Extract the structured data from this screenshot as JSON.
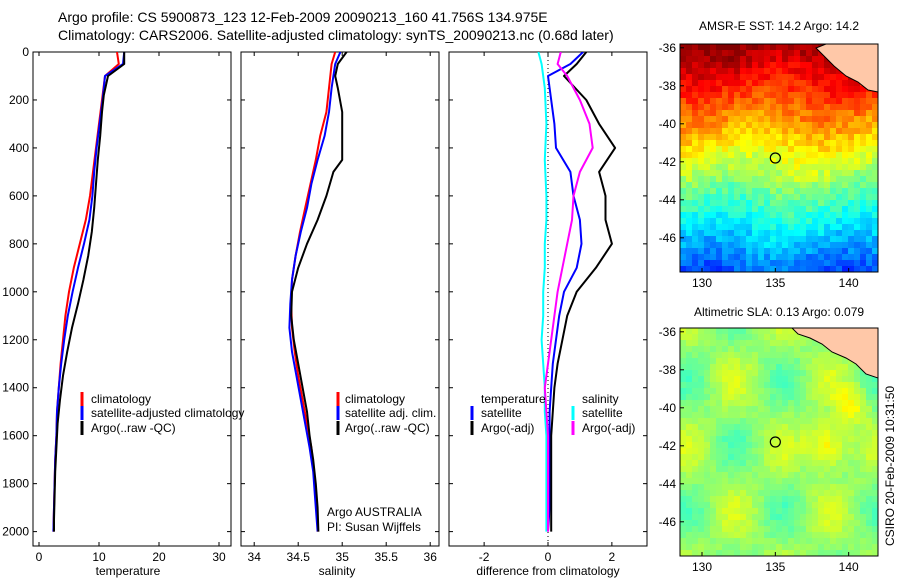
{
  "header": {
    "line1": "Argo profile: CS 5900873_123 12-Feb-2009 20090213_160 41.756S 134.975E",
    "line2": "Climatology: CARS2006. Satellite-adjusted climatology: synTS_20090213.nc (0.68d later)"
  },
  "colors": {
    "climatology": "#ff0000",
    "satellite": "#0000ff",
    "argo": "#000000",
    "diff_temp_sat": "#0000ff",
    "diff_temp_argo": "#000000",
    "diff_sal_sat": "#00ffff",
    "diff_sal_argo": "#ff00ff",
    "land": "#ffc8a8",
    "marker": "#000000"
  },
  "chart_data": [
    {
      "type": "line",
      "id": "temperature",
      "xlabel": "temperature",
      "ylabel": "",
      "xlim": [
        -1,
        32
      ],
      "ylim": [
        2060,
        0
      ],
      "xticks": [
        0,
        10,
        20,
        30
      ],
      "yticks": [
        0,
        200,
        400,
        600,
        800,
        1000,
        1200,
        1400,
        1600,
        1800,
        2000
      ],
      "legend": [
        "climatology",
        "satellite-adjusted climatology",
        "Argo(..raw -QC)"
      ],
      "series": [
        {
          "name": "climatology",
          "color": "#ff0000",
          "points": [
            [
              13.0,
              0
            ],
            [
              13.3,
              50
            ],
            [
              11.0,
              100
            ],
            [
              10.5,
              200
            ],
            [
              10.0,
              300
            ],
            [
              9.5,
              400
            ],
            [
              9.0,
              500
            ],
            [
              8.5,
              600
            ],
            [
              7.8,
              700
            ],
            [
              6.8,
              800
            ],
            [
              5.8,
              900
            ],
            [
              5.0,
              1000
            ],
            [
              4.4,
              1100
            ],
            [
              4.0,
              1200
            ],
            [
              3.6,
              1300
            ],
            [
              3.3,
              1400
            ],
            [
              3.0,
              1500
            ],
            [
              2.9,
              1600
            ],
            [
              2.7,
              1700
            ],
            [
              2.6,
              1800
            ],
            [
              2.5,
              1900
            ],
            [
              2.4,
              2000
            ]
          ]
        },
        {
          "name": "satellite-adjusted climatology",
          "color": "#0000ff",
          "points": [
            [
              14.2,
              0
            ],
            [
              14.0,
              50
            ],
            [
              11.0,
              100
            ],
            [
              10.6,
              200
            ],
            [
              10.1,
              300
            ],
            [
              9.6,
              400
            ],
            [
              9.2,
              500
            ],
            [
              8.9,
              600
            ],
            [
              8.4,
              700
            ],
            [
              7.5,
              800
            ],
            [
              6.5,
              900
            ],
            [
              5.6,
              1000
            ],
            [
              4.8,
              1100
            ],
            [
              4.2,
              1200
            ],
            [
              3.7,
              1300
            ],
            [
              3.3,
              1400
            ],
            [
              3.0,
              1500
            ],
            [
              2.9,
              1600
            ],
            [
              2.7,
              1700
            ],
            [
              2.6,
              1800
            ],
            [
              2.5,
              1900
            ],
            [
              2.4,
              2000
            ]
          ]
        },
        {
          "name": "Argo(..raw -QC)",
          "color": "#000000",
          "points": [
            [
              14.2,
              0
            ],
            [
              14.2,
              50
            ],
            [
              11.5,
              100
            ],
            [
              10.8,
              180
            ],
            [
              10.5,
              250
            ],
            [
              10.2,
              350
            ],
            [
              9.8,
              450
            ],
            [
              9.5,
              550
            ],
            [
              9.2,
              650
            ],
            [
              8.8,
              750
            ],
            [
              8.2,
              850
            ],
            [
              7.4,
              950
            ],
            [
              6.5,
              1050
            ],
            [
              5.5,
              1150
            ],
            [
              4.7,
              1250
            ],
            [
              4.0,
              1350
            ],
            [
              3.5,
              1450
            ],
            [
              3.1,
              1550
            ],
            [
              2.9,
              1650
            ],
            [
              2.7,
              1750
            ],
            [
              2.6,
              1850
            ],
            [
              2.5,
              1950
            ],
            [
              2.5,
              2000
            ]
          ]
        }
      ]
    },
    {
      "type": "line",
      "id": "salinity",
      "xlabel": "salinity",
      "ylabel": "",
      "xlim": [
        33.85,
        36.1
      ],
      "ylim": [
        2060,
        0
      ],
      "xticks": [
        34,
        34.5,
        35,
        35.5,
        36
      ],
      "yticks": [
        0,
        200,
        400,
        600,
        800,
        1000,
        1200,
        1400,
        1600,
        1800,
        2000
      ],
      "legend": [
        "climatology",
        "satellite adj. clim.",
        "Argo(..raw -QC)"
      ],
      "annotation": [
        "Argo AUSTRALIA",
        "PI: Susan Wijffels"
      ],
      "series": [
        {
          "name": "climatology",
          "color": "#ff0000",
          "points": [
            [
              34.92,
              0
            ],
            [
              34.88,
              50
            ],
            [
              34.85,
              150
            ],
            [
              34.82,
              250
            ],
            [
              34.75,
              350
            ],
            [
              34.7,
              450
            ],
            [
              34.64,
              550
            ],
            [
              34.58,
              650
            ],
            [
              34.52,
              750
            ],
            [
              34.47,
              850
            ],
            [
              34.43,
              950
            ],
            [
              34.42,
              1050
            ],
            [
              34.43,
              1150
            ],
            [
              34.46,
              1250
            ],
            [
              34.5,
              1350
            ],
            [
              34.55,
              1450
            ],
            [
              34.6,
              1550
            ],
            [
              34.65,
              1650
            ],
            [
              34.68,
              1750
            ],
            [
              34.7,
              1850
            ],
            [
              34.72,
              1950
            ],
            [
              34.72,
              2000
            ]
          ]
        },
        {
          "name": "satellite adj. clim.",
          "color": "#0000ff",
          "points": [
            [
              34.98,
              0
            ],
            [
              34.92,
              50
            ],
            [
              34.88,
              150
            ],
            [
              34.85,
              250
            ],
            [
              34.8,
              350
            ],
            [
              34.72,
              450
            ],
            [
              34.65,
              550
            ],
            [
              34.6,
              650
            ],
            [
              34.53,
              750
            ],
            [
              34.47,
              850
            ],
            [
              34.43,
              950
            ],
            [
              34.41,
              1050
            ],
            [
              34.4,
              1150
            ],
            [
              34.43,
              1250
            ],
            [
              34.48,
              1350
            ],
            [
              34.53,
              1450
            ],
            [
              34.58,
              1550
            ],
            [
              34.63,
              1650
            ],
            [
              34.67,
              1750
            ],
            [
              34.69,
              1850
            ],
            [
              34.71,
              1950
            ],
            [
              34.72,
              2000
            ]
          ]
        },
        {
          "name": "Argo(..raw -QC)",
          "color": "#000000",
          "points": [
            [
              35.05,
              0
            ],
            [
              34.95,
              50
            ],
            [
              34.92,
              100
            ],
            [
              34.95,
              150
            ],
            [
              35.0,
              250
            ],
            [
              35.0,
              300
            ],
            [
              35.0,
              400
            ],
            [
              35.0,
              450
            ],
            [
              34.9,
              500
            ],
            [
              34.82,
              600
            ],
            [
              34.72,
              700
            ],
            [
              34.6,
              800
            ],
            [
              34.5,
              900
            ],
            [
              34.43,
              1000
            ],
            [
              34.42,
              1100
            ],
            [
              34.45,
              1200
            ],
            [
              34.5,
              1300
            ],
            [
              34.55,
              1400
            ],
            [
              34.6,
              1500
            ],
            [
              34.63,
              1600
            ],
            [
              34.67,
              1700
            ],
            [
              34.7,
              1800
            ],
            [
              34.72,
              1900
            ],
            [
              34.73,
              2000
            ]
          ]
        }
      ]
    },
    {
      "type": "line",
      "id": "difference",
      "xlabel": "difference from climatology",
      "ylabel": "",
      "xlim": [
        -3.1,
        3.1
      ],
      "ylim": [
        2060,
        0
      ],
      "xticks": [
        -2,
        0,
        2
      ],
      "yticks": [
        0,
        200,
        400,
        600,
        800,
        1000,
        1200,
        1400,
        1600,
        1800,
        2000
      ],
      "legend_temperature_title": "temperature",
      "legend_salinity_title": "salinity",
      "legend": [
        "satellite",
        "Argo(-adj)",
        "satellite",
        "Argo(-adj)"
      ],
      "series": [
        {
          "name": "temperature satellite",
          "color": "#0000ff",
          "points": [
            [
              1.1,
              0
            ],
            [
              0.7,
              50
            ],
            [
              0.0,
              100
            ],
            [
              0.1,
              200
            ],
            [
              0.2,
              300
            ],
            [
              0.25,
              400
            ],
            [
              0.7,
              500
            ],
            [
              0.8,
              600
            ],
            [
              1.0,
              700
            ],
            [
              1.05,
              800
            ],
            [
              0.9,
              900
            ],
            [
              0.5,
              1000
            ],
            [
              0.35,
              1100
            ],
            [
              0.25,
              1200
            ],
            [
              0.15,
              1300
            ],
            [
              0.1,
              1400
            ],
            [
              0.05,
              1500
            ],
            [
              0.05,
              1600
            ],
            [
              0.05,
              1700
            ],
            [
              0.05,
              1800
            ],
            [
              0.05,
              1900
            ],
            [
              0.0,
              2000
            ]
          ]
        },
        {
          "name": "temperature Argo(-adj)",
          "color": "#000000",
          "points": [
            [
              1.2,
              0
            ],
            [
              0.9,
              50
            ],
            [
              0.5,
              100
            ],
            [
              1.2,
              200
            ],
            [
              1.6,
              300
            ],
            [
              2.1,
              400
            ],
            [
              1.6,
              500
            ],
            [
              1.8,
              600
            ],
            [
              1.8,
              700
            ],
            [
              2.0,
              800
            ],
            [
              1.5,
              900
            ],
            [
              0.9,
              1000
            ],
            [
              0.6,
              1100
            ],
            [
              0.45,
              1200
            ],
            [
              0.3,
              1300
            ],
            [
              0.2,
              1400
            ],
            [
              0.15,
              1500
            ],
            [
              0.1,
              1600
            ],
            [
              0.1,
              1700
            ],
            [
              0.1,
              1800
            ],
            [
              0.1,
              1900
            ],
            [
              0.1,
              2000
            ]
          ]
        },
        {
          "name": "salinity satellite",
          "color": "#00ffff",
          "points": [
            [
              -0.3,
              0
            ],
            [
              -0.2,
              50
            ],
            [
              -0.1,
              150
            ],
            [
              -0.05,
              300
            ],
            [
              -0.1,
              450
            ],
            [
              -0.05,
              600
            ],
            [
              -0.05,
              700
            ],
            [
              -0.1,
              800
            ],
            [
              -0.1,
              900
            ],
            [
              -0.15,
              1000
            ],
            [
              -0.15,
              1100
            ],
            [
              -0.2,
              1200
            ],
            [
              -0.15,
              1300
            ],
            [
              -0.1,
              1400
            ],
            [
              -0.1,
              1500
            ],
            [
              -0.05,
              1600
            ],
            [
              -0.05,
              1700
            ],
            [
              -0.05,
              1800
            ],
            [
              -0.05,
              1900
            ],
            [
              -0.05,
              2000
            ]
          ]
        },
        {
          "name": "salinity Argo(-adj)",
          "color": "#ff00ff",
          "points": [
            [
              0.4,
              0
            ],
            [
              0.3,
              50
            ],
            [
              0.6,
              100
            ],
            [
              1.0,
              200
            ],
            [
              1.3,
              300
            ],
            [
              1.4,
              400
            ],
            [
              1.0,
              500
            ],
            [
              0.8,
              600
            ],
            [
              0.75,
              700
            ],
            [
              0.6,
              800
            ],
            [
              0.45,
              900
            ],
            [
              0.3,
              1000
            ],
            [
              0.2,
              1100
            ],
            [
              0.1,
              1200
            ],
            [
              0.0,
              1300
            ],
            [
              -0.1,
              1400
            ],
            [
              -0.05,
              1500
            ],
            [
              0.0,
              1600
            ],
            [
              0.0,
              1700
            ],
            [
              0.0,
              1800
            ],
            [
              0.0,
              1900
            ],
            [
              0.0,
              2000
            ]
          ]
        }
      ]
    },
    {
      "type": "heatmap",
      "id": "sst-map",
      "title": "AMSR-E SST: 14.2  Argo: 14.2",
      "xlim": [
        128.5,
        142
      ],
      "ylim": [
        -47.8,
        -35.8
      ],
      "xticks": [
        130,
        135,
        140
      ],
      "yticks": [
        -36,
        -38,
        -40,
        -42,
        -44,
        -46
      ],
      "marker": [
        135,
        -41.8
      ]
    },
    {
      "type": "heatmap",
      "id": "sla-map",
      "title": "Altimetric SLA: 0.13  Argo: 0.079",
      "xlim": [
        128.5,
        142
      ],
      "ylim": [
        -47.8,
        -35.8
      ],
      "xticks": [
        130,
        135,
        140
      ],
      "yticks": [
        -36,
        -38,
        -40,
        -42,
        -44,
        -46
      ],
      "marker": [
        135,
        -41.8
      ]
    }
  ],
  "footer": {
    "vertical_text": "CSIRO 20-Feb-2009 10:31:50"
  }
}
